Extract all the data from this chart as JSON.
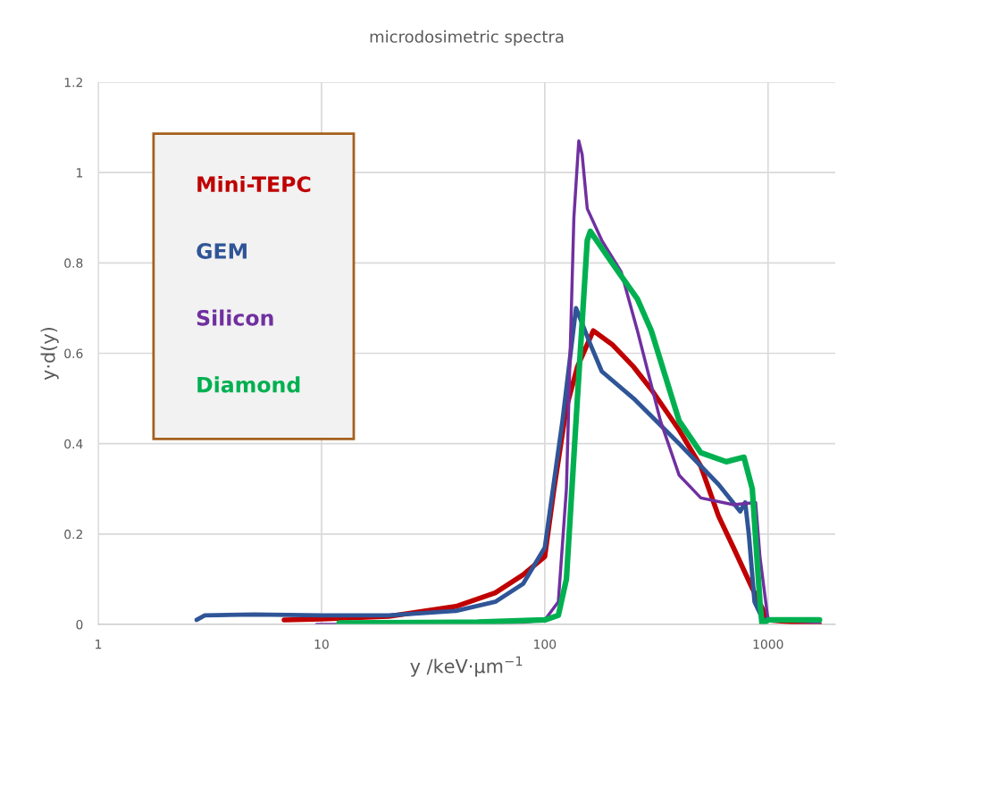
{
  "chart_data": {
    "type": "line",
    "title": "microdosimetric spectra",
    "xlabel": "y /keV·µm$^{−1}$",
    "ylabel": "y·d(y)",
    "log": "x",
    "xlim": [
      1,
      2000
    ],
    "xticks": [
      1,
      10,
      100,
      1000
    ],
    "ylim": [
      0,
      1.2
    ],
    "yticks": [
      0,
      0.2,
      0.4,
      0.6,
      0.8,
      1,
      1.2
    ],
    "grid": true,
    "legend": "top left",
    "marker": "none",
    "line_style": "solid",
    "series": [
      {
        "name": "Mini-TEPC",
        "color": "#c00000",
        "x": [
          6.8,
          10,
          20,
          40,
          60,
          80,
          100,
          110,
          125,
          140,
          165,
          200,
          250,
          300,
          400,
          500,
          600,
          700,
          850,
          1000,
          1700
        ],
        "values": [
          0.01,
          0.012,
          0.018,
          0.04,
          0.07,
          0.11,
          0.15,
          0.3,
          0.48,
          0.57,
          0.65,
          0.62,
          0.57,
          0.52,
          0.43,
          0.35,
          0.24,
          0.17,
          0.08,
          0.01,
          0.0
        ]
      },
      {
        "name": "GEM",
        "color": "#2f5597",
        "x": [
          2.76,
          3,
          5,
          10,
          20,
          40,
          60,
          80,
          100,
          120,
          138,
          160,
          180,
          250,
          400,
          600,
          750,
          790,
          820,
          870,
          950,
          1700
        ],
        "values": [
          0.01,
          0.02,
          0.022,
          0.02,
          0.02,
          0.03,
          0.05,
          0.09,
          0.17,
          0.45,
          0.7,
          0.62,
          0.56,
          0.5,
          0.4,
          0.31,
          0.25,
          0.27,
          0.2,
          0.05,
          0.01,
          0.01
        ]
      },
      {
        "name": "Silicon",
        "color": "#7030a0",
        "x": [
          9.5,
          20,
          80,
          100,
          115,
          125,
          135,
          142,
          147,
          155,
          180,
          220,
          260,
          330,
          400,
          500,
          700,
          880,
          920,
          1000,
          1700
        ],
        "values": [
          0.0,
          0.0,
          0.005,
          0.01,
          0.05,
          0.3,
          0.9,
          1.07,
          1.04,
          0.92,
          0.85,
          0.78,
          0.65,
          0.45,
          0.33,
          0.28,
          0.265,
          0.27,
          0.15,
          0.01,
          0.005
        ]
      },
      {
        "name": "Diamond",
        "color": "#00b050",
        "x": [
          12,
          50,
          100,
          115,
          125,
          140,
          155,
          160,
          200,
          260,
          300,
          400,
          500,
          650,
          780,
          850,
          920,
          940,
          1000,
          1700
        ],
        "values": [
          0.003,
          0.005,
          0.01,
          0.02,
          0.1,
          0.5,
          0.85,
          0.87,
          0.8,
          0.72,
          0.65,
          0.45,
          0.38,
          0.36,
          0.37,
          0.3,
          0.05,
          0.0,
          0.01,
          0.01
        ]
      }
    ]
  }
}
